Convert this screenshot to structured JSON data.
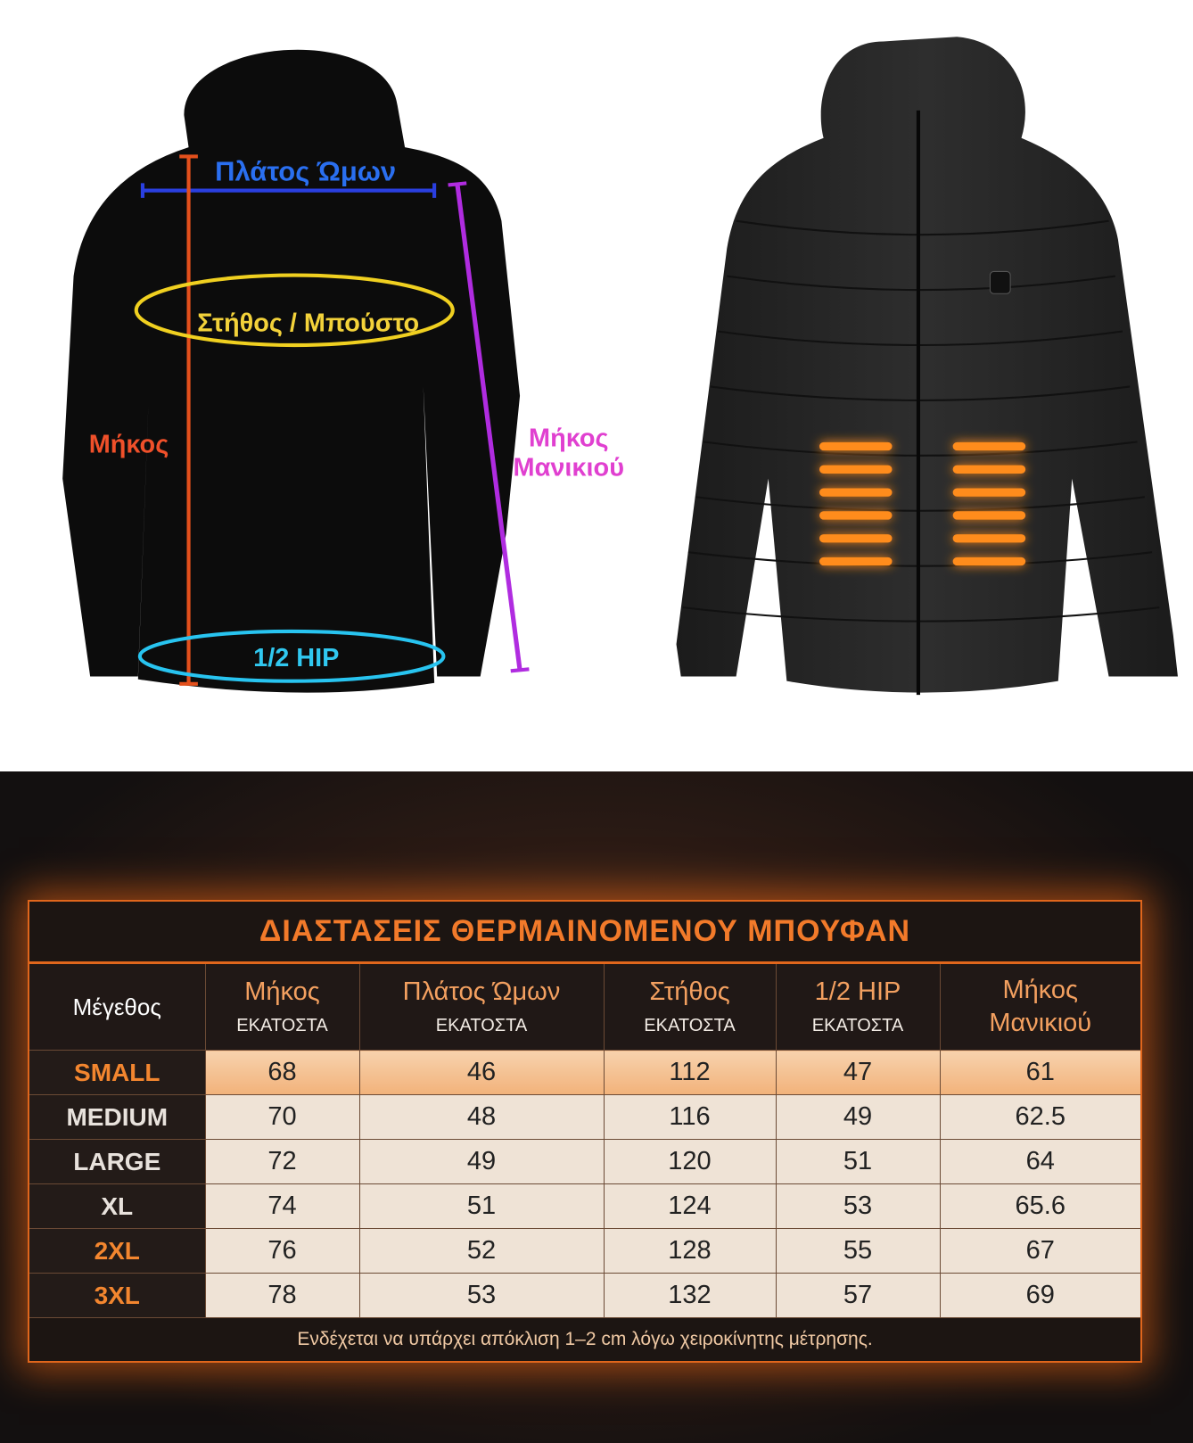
{
  "diagram": {
    "labels": {
      "shoulder": "Πλάτος Ώμων",
      "chest": "Στήθος / Μπούστο",
      "length": "Μήκος",
      "sleeve": [
        "Μήκος",
        "Μανικιού"
      ],
      "hip": "1/2 HIP"
    }
  },
  "table": {
    "title": "ΔΙΑΣΤΑΣΕΙΣ ΘΕΡΜΑΙΝΟΜΕΝΟΥ ΜΠΟΥΦΑΝ",
    "header": [
      [
        "Μέγεθος"
      ],
      [
        "Μήκος",
        "ΕΚΑΤΟΣΤΑ"
      ],
      [
        "Πλάτος Ώμων",
        "ΕΚΑΤΟΣΤΑ"
      ],
      [
        "Στήθος",
        "ΕΚΑΤΟΣΤΑ"
      ],
      [
        "1/2 HIP",
        "ΕΚΑΤΟΣΤΑ"
      ],
      [
        "Μήκος",
        "Μανικιού"
      ]
    ],
    "rows": [
      [
        "SMALL",
        68,
        46,
        112,
        47,
        61
      ],
      [
        "MEDIUM",
        70,
        48,
        116,
        49,
        62.5
      ],
      [
        "LARGE",
        72,
        49,
        120,
        51,
        64
      ],
      [
        "XL",
        74,
        51,
        124,
        53,
        65.6
      ],
      [
        "2XL",
        76,
        52,
        128,
        55,
        67
      ],
      [
        "3XL",
        78,
        53,
        132,
        57,
        69
      ]
    ],
    "note": "Ενδέχεται να υπάρχει απόκλιση 1–2 cm λόγω χειροκίνητης μέτρησης."
  }
}
